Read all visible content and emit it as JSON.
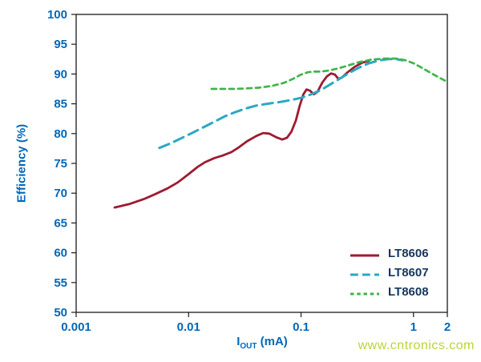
{
  "watermark": {
    "text": "www.cntronics.com",
    "color": "#b9d53a"
  },
  "chart_data": {
    "type": "line",
    "title": "",
    "xlabel": {
      "base": "I",
      "sub": "OUT",
      "rest": " (mA)"
    },
    "ylabel": "Efficiency (%)",
    "x_scale": "log",
    "xlim": [
      0.001,
      2
    ],
    "ylim": [
      50,
      100
    ],
    "grid": false,
    "axis_color": "#1a1a1a",
    "label_color": "#0067b9",
    "legend_position": "inside-bottom-right",
    "x_ticks": [
      {
        "v": 0.001,
        "label": "0.001"
      },
      {
        "v": 0.01,
        "label": "0.01"
      },
      {
        "v": 0.1,
        "label": "0.1"
      },
      {
        "v": 1,
        "label": "1"
      },
      {
        "v": 2,
        "label": "2"
      }
    ],
    "y_ticks": [
      {
        "v": 100,
        "label": "100"
      },
      {
        "v": 95,
        "label": "95"
      },
      {
        "v": 90,
        "label": "90"
      },
      {
        "v": 85,
        "label": "85"
      },
      {
        "v": 80,
        "label": "80"
      },
      {
        "v": 75,
        "label": "75"
      },
      {
        "v": 70,
        "label": "70"
      },
      {
        "v": 65,
        "label": "65"
      },
      {
        "v": 60,
        "label": "60"
      },
      {
        "v": 55,
        "label": "55"
      },
      {
        "v": 50,
        "label": "50"
      }
    ],
    "series": [
      {
        "name": "LT8606",
        "color": "#9e1b32",
        "dash": null,
        "width": 2.8,
        "points": [
          [
            0.0022,
            67.6
          ],
          [
            0.003,
            68.2
          ],
          [
            0.004,
            69.0
          ],
          [
            0.005,
            69.8
          ],
          [
            0.0065,
            70.8
          ],
          [
            0.008,
            71.8
          ],
          [
            0.01,
            73.2
          ],
          [
            0.012,
            74.4
          ],
          [
            0.014,
            75.2
          ],
          [
            0.017,
            75.9
          ],
          [
            0.02,
            76.3
          ],
          [
            0.024,
            76.9
          ],
          [
            0.028,
            77.7
          ],
          [
            0.033,
            78.7
          ],
          [
            0.04,
            79.6
          ],
          [
            0.046,
            80.1
          ],
          [
            0.052,
            80.0
          ],
          [
            0.06,
            79.4
          ],
          [
            0.068,
            79.0
          ],
          [
            0.075,
            79.3
          ],
          [
            0.082,
            80.3
          ],
          [
            0.09,
            82.2
          ],
          [
            0.097,
            84.6
          ],
          [
            0.105,
            86.6
          ],
          [
            0.112,
            87.4
          ],
          [
            0.12,
            87.2
          ],
          [
            0.13,
            86.6
          ],
          [
            0.14,
            87.0
          ],
          [
            0.155,
            88.6
          ],
          [
            0.17,
            89.6
          ],
          [
            0.185,
            90.1
          ],
          [
            0.2,
            89.9
          ],
          [
            0.215,
            89.2
          ],
          [
            0.23,
            89.4
          ],
          [
            0.26,
            90.3
          ],
          [
            0.3,
            91.2
          ],
          [
            0.35,
            91.9
          ],
          [
            0.4,
            92.2
          ]
        ]
      },
      {
        "name": "LT8607",
        "color": "#2aa8c4",
        "dash": [
          13,
          7
        ],
        "width": 3,
        "points": [
          [
            0.0055,
            77.6
          ],
          [
            0.007,
            78.4
          ],
          [
            0.009,
            79.4
          ],
          [
            0.011,
            80.2
          ],
          [
            0.014,
            81.2
          ],
          [
            0.017,
            82.0
          ],
          [
            0.021,
            82.9
          ],
          [
            0.026,
            83.6
          ],
          [
            0.032,
            84.2
          ],
          [
            0.04,
            84.7
          ],
          [
            0.05,
            85.0
          ],
          [
            0.065,
            85.3
          ],
          [
            0.08,
            85.6
          ],
          [
            0.1,
            86.0
          ],
          [
            0.12,
            86.5
          ],
          [
            0.15,
            87.3
          ],
          [
            0.18,
            88.2
          ],
          [
            0.22,
            89.2
          ],
          [
            0.27,
            90.2
          ],
          [
            0.33,
            91.1
          ],
          [
            0.4,
            91.8
          ],
          [
            0.5,
            92.3
          ],
          [
            0.6,
            92.5
          ],
          [
            0.7,
            92.5
          ],
          [
            0.8,
            92.3
          ]
        ]
      },
      {
        "name": "LT8608",
        "color": "#3eb549",
        "dash": [
          6,
          5
        ],
        "width": 2.7,
        "points": [
          [
            0.016,
            87.5
          ],
          [
            0.02,
            87.5
          ],
          [
            0.026,
            87.5
          ],
          [
            0.033,
            87.6
          ],
          [
            0.042,
            87.7
          ],
          [
            0.055,
            88.0
          ],
          [
            0.07,
            88.5
          ],
          [
            0.085,
            89.2
          ],
          [
            0.1,
            89.9
          ],
          [
            0.115,
            90.3
          ],
          [
            0.13,
            90.4
          ],
          [
            0.15,
            90.4
          ],
          [
            0.18,
            90.6
          ],
          [
            0.22,
            91.0
          ],
          [
            0.27,
            91.5
          ],
          [
            0.33,
            92.0
          ],
          [
            0.42,
            92.4
          ],
          [
            0.55,
            92.6
          ],
          [
            0.7,
            92.6
          ],
          [
            0.85,
            92.3
          ],
          [
            1.0,
            91.8
          ],
          [
            1.2,
            91.0
          ],
          [
            1.45,
            90.1
          ],
          [
            1.7,
            89.4
          ],
          [
            1.9,
            88.9
          ]
        ]
      }
    ]
  }
}
